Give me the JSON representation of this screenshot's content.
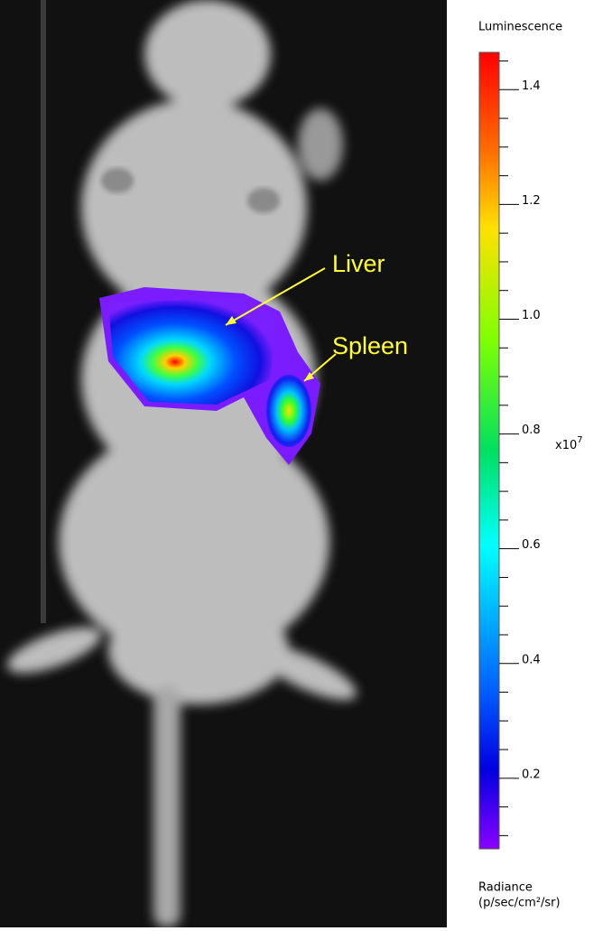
{
  "image": {
    "annotations": [
      {
        "label": "Liver"
      },
      {
        "label": "Spleen"
      }
    ]
  },
  "colorbar": {
    "title": "Luminescence",
    "lim": [
      0.077,
      1.465
    ],
    "ticks": [
      {
        "value": 0.2,
        "label": "0.2"
      },
      {
        "value": 0.4,
        "label": "0.4"
      },
      {
        "value": 0.6,
        "label": "0.6"
      },
      {
        "value": 0.8,
        "label": "0.8"
      },
      {
        "value": 1.0,
        "label": "1.0"
      },
      {
        "value": 1.2,
        "label": "1.2"
      },
      {
        "value": 1.4,
        "label": "1.4"
      }
    ],
    "minor_ticks": [
      0.1,
      0.15,
      0.25,
      0.3,
      0.35,
      0.45,
      0.5,
      0.55,
      0.65,
      0.7,
      0.75,
      0.85,
      0.9,
      0.95,
      1.05,
      1.1,
      1.15,
      1.25,
      1.3,
      1.35,
      1.45
    ],
    "multiplier_base": "x10",
    "multiplier_exponent": "7",
    "unit_label": "Radiance",
    "unit": "(p/sec/cm²/sr)"
  }
}
